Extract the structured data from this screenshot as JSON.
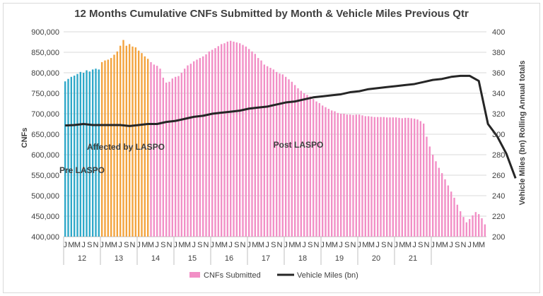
{
  "chart_data": {
    "type": "bar",
    "title": "12 Months Cumulative CNFs Submitted by Month & Vehicle Miles Previous Qtr",
    "ylabel": "CNFs",
    "y2label": "Vehicle Miles (bn) Rolling Annual totals",
    "ylim": [
      400000,
      900000
    ],
    "y2lim": [
      200,
      400
    ],
    "yticks": [
      "400,000",
      "450,000",
      "500,000",
      "550,000",
      "600,000",
      "650,000",
      "700,000",
      "750,000",
      "800,000",
      "850,000",
      "900,000"
    ],
    "y2ticks": [
      "200",
      "220",
      "240",
      "260",
      "280",
      "300",
      "320",
      "340",
      "360",
      "380",
      "400"
    ],
    "month_letters": [
      "J",
      "M",
      "M",
      "J",
      "S",
      "N"
    ],
    "years": [
      "12",
      "13",
      "14",
      "15",
      "16",
      "17",
      "18",
      "19",
      "20",
      "21"
    ],
    "grid": true,
    "legend_position": "bottom",
    "series": [
      {
        "name": "CNFs Submitted",
        "type": "bar",
        "color": "#f28fc6",
        "period_colors": [
          "#2fa8c8",
          "#f3a33e",
          "#f28fc6"
        ],
        "period_lengths": [
          12,
          16,
          0
        ],
        "values": [
          779000,
          785000,
          790000,
          793000,
          797000,
          802000,
          800000,
          806000,
          803000,
          808000,
          810000,
          808000,
          826000,
          830000,
          832000,
          836000,
          844000,
          852000,
          866000,
          880000,
          866000,
          870000,
          864000,
          862000,
          854000,
          848000,
          840000,
          834000,
          826000,
          820000,
          817000,
          810000,
          788000,
          776000,
          778000,
          786000,
          790000,
          792000,
          800000,
          810000,
          818000,
          822000,
          828000,
          832000,
          836000,
          840000,
          845000,
          852000,
          856000,
          860000,
          865000,
          870000,
          872000,
          876000,
          878000,
          876000,
          874000,
          872000,
          868000,
          864000,
          858000,
          852000,
          846000,
          836000,
          830000,
          820000,
          816000,
          812000,
          808000,
          802000,
          798000,
          796000,
          790000,
          784000,
          778000,
          770000,
          762000,
          756000,
          750000,
          746000,
          742000,
          736000,
          730000,
          726000,
          720000,
          716000,
          712000,
          708000,
          706000,
          702000,
          700000,
          700000,
          698000,
          698000,
          697000,
          698000,
          698000,
          696000,
          694000,
          694000,
          693000,
          692000,
          692000,
          692000,
          692000,
          691000,
          691000,
          691000,
          691000,
          690000,
          689000,
          690000,
          690000,
          689000,
          688000,
          686000,
          682000,
          676000,
          644000,
          620000,
          600000,
          584000,
          568000,
          555000,
          540000,
          525000,
          510000,
          495000,
          478000,
          462000,
          448000,
          435000,
          443000,
          452000,
          460000,
          455000,
          445000,
          430000
        ]
      },
      {
        "name": "Vehicle Miles (bn)",
        "type": "line",
        "color": "#262626",
        "values": [
          [
            0,
            308.5
          ],
          [
            3,
            309
          ],
          [
            6,
            310
          ],
          [
            9,
            309
          ],
          [
            12,
            309
          ],
          [
            15,
            309
          ],
          [
            18,
            309
          ],
          [
            21,
            308
          ],
          [
            24,
            309
          ],
          [
            27,
            310
          ],
          [
            30,
            310
          ],
          [
            33,
            312
          ],
          [
            36,
            313
          ],
          [
            39,
            315
          ],
          [
            42,
            317
          ],
          [
            45,
            318
          ],
          [
            48,
            320
          ],
          [
            51,
            321
          ],
          [
            54,
            322
          ],
          [
            57,
            323
          ],
          [
            60,
            325
          ],
          [
            63,
            326
          ],
          [
            66,
            327
          ],
          [
            69,
            329
          ],
          [
            72,
            331
          ],
          [
            75,
            332
          ],
          [
            78,
            334
          ],
          [
            81,
            336
          ],
          [
            84,
            337
          ],
          [
            87,
            338
          ],
          [
            90,
            339
          ],
          [
            93,
            341
          ],
          [
            96,
            342
          ],
          [
            99,
            344
          ],
          [
            102,
            345
          ],
          [
            105,
            346
          ],
          [
            108,
            347
          ],
          [
            111,
            348
          ],
          [
            114,
            349
          ],
          [
            117,
            351
          ],
          [
            120,
            353
          ],
          [
            123,
            354
          ],
          [
            126,
            356
          ],
          [
            129,
            357
          ],
          [
            132,
            357
          ],
          [
            135,
            352
          ],
          [
            138,
            310
          ],
          [
            141,
            298
          ],
          [
            144,
            281
          ],
          [
            147,
            257
          ]
        ]
      }
    ],
    "annotations": [
      "Pre LASPO",
      "Affected by LASPO",
      "Post LASPO"
    ],
    "legend": [
      "CNFs Submitted",
      "Vehicle Miles (bn)"
    ]
  }
}
